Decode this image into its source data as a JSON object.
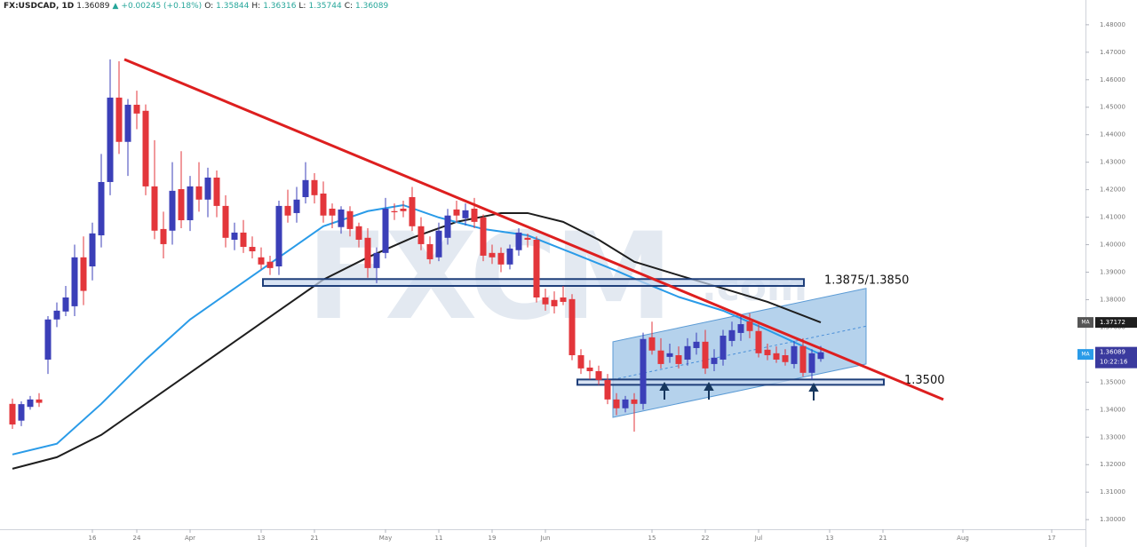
{
  "chart_data": {
    "type": "candlestick",
    "header": [
      "FX:USDCAD, 1D",
      "1.36089",
      "▲",
      "+0.00245 (+0.18%)",
      "O:",
      "1.35844",
      "H:",
      "1.36316",
      "L:",
      "1.35744",
      "C:",
      "1.36089"
    ],
    "watermark": "FXCM",
    "watermark_suffix": ".com",
    "up_color": "#3b3fb8",
    "down_color": "#e3363b",
    "xlim": [
      -1.4,
      120.8
    ],
    "ylim": [
      1.2965,
      1.489
    ],
    "xticks": [
      {
        "value": 9,
        "label": "16"
      },
      {
        "value": 14,
        "label": "24"
      },
      {
        "value": 20,
        "label": "Apr"
      },
      {
        "value": 28,
        "label": "13"
      },
      {
        "value": 34,
        "label": "21"
      },
      {
        "value": 42,
        "label": "May"
      },
      {
        "value": 48,
        "label": "11"
      },
      {
        "value": 54,
        "label": "19"
      },
      {
        "value": 60,
        "label": "Jun"
      },
      {
        "value": 72,
        "label": "15"
      },
      {
        "value": 78,
        "label": "22"
      },
      {
        "value": 84,
        "label": "Jul"
      },
      {
        "value": 92,
        "label": "13"
      },
      {
        "value": 98,
        "label": "21"
      },
      {
        "value": 107,
        "label": "Aug"
      },
      {
        "value": 117,
        "label": "17"
      }
    ],
    "yticks": [
      {
        "value": 1.48,
        "label": "1.48000"
      },
      {
        "value": 1.47,
        "label": "1.47000"
      },
      {
        "value": 1.46,
        "label": "1.46000"
      },
      {
        "value": 1.45,
        "label": "1.45000"
      },
      {
        "value": 1.44,
        "label": "1.44000"
      },
      {
        "value": 1.43,
        "label": "1.43000"
      },
      {
        "value": 1.42,
        "label": "1.42000"
      },
      {
        "value": 1.41,
        "label": "1.41000"
      },
      {
        "value": 1.4,
        "label": "1.40000"
      },
      {
        "value": 1.39,
        "label": "1.39000"
      },
      {
        "value": 1.38,
        "label": "1.38000"
      },
      {
        "value": 1.37,
        "label": "1.37000"
      },
      {
        "value": 1.35,
        "label": "1.35000"
      },
      {
        "value": 1.34,
        "label": "1.34000"
      },
      {
        "value": 1.33,
        "label": "1.33000"
      },
      {
        "value": 1.32,
        "label": "1.32000"
      },
      {
        "value": 1.31,
        "label": "1.31000"
      },
      {
        "value": 1.3,
        "label": "1.30000"
      }
    ],
    "x": [
      0,
      1,
      2,
      3,
      4,
      5,
      6,
      7,
      8,
      9,
      10,
      11,
      12,
      13,
      14,
      15,
      16,
      17,
      18,
      19,
      20,
      21,
      22,
      23,
      24,
      25,
      26,
      27,
      28,
      29,
      30,
      31,
      32,
      33,
      34,
      35,
      36,
      37,
      38,
      39,
      40,
      41,
      42,
      43,
      44,
      45,
      46,
      47,
      48,
      49,
      50,
      51,
      52,
      53,
      54,
      55,
      56,
      57,
      58,
      59,
      60,
      61,
      62,
      63,
      64,
      65,
      66,
      67,
      68,
      69,
      70,
      71,
      72,
      73,
      74,
      75,
      76,
      77,
      78,
      79,
      80,
      81,
      82,
      83,
      84,
      85,
      86,
      87,
      88,
      89,
      90,
      91
    ],
    "open": [
      1.3421,
      1.336,
      1.341,
      1.3437,
      1.3582,
      1.3728,
      1.3757,
      1.3776,
      1.3954,
      1.3921,
      1.4034,
      1.4228,
      1.4535,
      1.4374,
      1.4509,
      1.4487,
      1.4212,
      1.4057,
      1.4051,
      1.4202,
      1.4089,
      1.4212,
      1.4164,
      1.4244,
      1.4141,
      1.4018,
      1.4044,
      1.3992,
      1.3954,
      1.3938,
      1.3921,
      1.4141,
      1.4115,
      1.4173,
      1.4235,
      1.4186,
      1.4131,
      1.4064,
      1.4122,
      1.4067,
      1.4025,
      1.3915,
      1.397,
      1.4122,
      1.4131,
      1.4173,
      1.4067,
      1.4002,
      1.3954,
      1.4025,
      1.4128,
      1.4096,
      1.4131,
      1.4099,
      1.397,
      1.397,
      1.3928,
      1.398,
      1.4025,
      1.4018,
      1.3808,
      1.3799,
      1.3808,
      1.3802,
      1.3598,
      1.3553,
      1.354,
      1.3508,
      1.3437,
      1.3405,
      1.3437,
      1.3421,
      1.3663,
      1.3615,
      1.3592,
      1.3598,
      1.3582,
      1.3624,
      1.3647,
      1.3566,
      1.3582,
      1.365,
      1.3679,
      1.3721,
      1.3686,
      1.3618,
      1.3605,
      1.3598,
      1.3566,
      1.3631,
      1.3534,
      1.35844
    ],
    "high": [
      1.344,
      1.343,
      1.345,
      1.346,
      1.374,
      1.379,
      1.385,
      1.4,
      1.403,
      1.408,
      1.433,
      1.4674,
      1.4667,
      1.453,
      1.456,
      1.451,
      1.438,
      1.412,
      1.43,
      1.434,
      1.425,
      1.43,
      1.428,
      1.427,
      1.418,
      1.408,
      1.409,
      1.403,
      1.399,
      1.396,
      1.416,
      1.42,
      1.421,
      1.43,
      1.426,
      1.423,
      1.415,
      1.414,
      1.414,
      1.408,
      1.406,
      1.399,
      1.417,
      1.415,
      1.416,
      1.421,
      1.41,
      1.403,
      1.408,
      1.413,
      1.416,
      1.415,
      1.417,
      1.411,
      1.4,
      1.399,
      1.4,
      1.406,
      1.404,
      1.403,
      1.384,
      1.383,
      1.385,
      1.382,
      1.362,
      1.358,
      1.356,
      1.353,
      1.346,
      1.345,
      1.346,
      1.368,
      1.372,
      1.366,
      1.364,
      1.363,
      1.366,
      1.368,
      1.369,
      1.362,
      1.369,
      1.372,
      1.374,
      1.375,
      1.371,
      1.364,
      1.363,
      1.362,
      1.365,
      1.366,
      1.362,
      1.36316
    ],
    "low": [
      1.333,
      1.334,
      1.34,
      1.341,
      1.353,
      1.37,
      1.374,
      1.374,
      1.378,
      1.387,
      1.399,
      1.418,
      1.433,
      1.425,
      1.442,
      1.418,
      1.402,
      1.395,
      1.4,
      1.406,
      1.405,
      1.412,
      1.41,
      1.41,
      1.399,
      1.398,
      1.397,
      1.395,
      1.391,
      1.389,
      1.389,
      1.408,
      1.408,
      1.415,
      1.415,
      1.408,
      1.406,
      1.404,
      1.403,
      1.399,
      1.388,
      1.386,
      1.395,
      1.409,
      1.41,
      1.405,
      1.398,
      1.393,
      1.394,
      1.4,
      1.408,
      1.407,
      1.406,
      1.394,
      1.393,
      1.39,
      1.391,
      1.396,
      1.399,
      1.379,
      1.376,
      1.375,
      1.378,
      1.358,
      1.353,
      1.351,
      1.349,
      1.342,
      1.338,
      1.339,
      1.332,
      1.34,
      1.36,
      1.355,
      1.357,
      1.355,
      1.356,
      1.36,
      1.353,
      1.354,
      1.356,
      1.363,
      1.365,
      1.366,
      1.359,
      1.358,
      1.357,
      1.356,
      1.355,
      1.352,
      1.351,
      1.35744
    ],
    "close": [
      1.3346,
      1.342,
      1.3437,
      1.3425,
      1.3728,
      1.376,
      1.3808,
      1.3954,
      1.3832,
      1.4041,
      1.4228,
      1.4535,
      1.4374,
      1.4509,
      1.4477,
      1.4212,
      1.4051,
      1.4002,
      1.4196,
      1.4089,
      1.4212,
      1.4164,
      1.4244,
      1.4141,
      1.4025,
      1.4044,
      1.3992,
      1.3976,
      1.3928,
      1.3915,
      1.4141,
      1.4106,
      1.4164,
      1.4235,
      1.418,
      1.4106,
      1.4106,
      1.4128,
      1.4057,
      1.4018,
      1.3915,
      1.397,
      1.4131,
      1.4118,
      1.4122,
      1.4067,
      1.4002,
      1.3947,
      1.4051,
      1.4106,
      1.4106,
      1.4125,
      1.4083,
      1.396,
      1.3954,
      1.3928,
      1.3986,
      1.4044,
      1.4018,
      1.3808,
      1.3783,
      1.3776,
      1.3792,
      1.3598,
      1.355,
      1.354,
      1.3508,
      1.3437,
      1.3405,
      1.3437,
      1.3421,
      1.3657,
      1.3615,
      1.3566,
      1.3605,
      1.3566,
      1.3631,
      1.3647,
      1.355,
      1.3589,
      1.3669,
      1.3689,
      1.3711,
      1.3686,
      1.3605,
      1.3598,
      1.3582,
      1.3573,
      1.3631,
      1.3534,
      1.3605,
      1.36089
    ],
    "price_label": 1.36089,
    "countdown": "10:22:16",
    "price_color": "#3a3a9e",
    "series": [
      {
        "name": "MA",
        "color": "#1e1e1e",
        "last_value": 1.37172,
        "x": [
          0,
          5,
          10,
          15,
          20,
          25,
          30,
          35,
          40,
          45,
          50,
          55,
          58,
          62,
          66,
          70,
          75,
          80,
          85,
          91
        ],
        "values": [
          1.3185,
          1.3227,
          1.3308,
          1.3421,
          1.3534,
          1.3647,
          1.376,
          1.3873,
          1.3954,
          1.4025,
          1.4083,
          1.4115,
          1.4115,
          1.4083,
          1.4018,
          1.3938,
          1.3889,
          1.3841,
          1.3792,
          1.37172
        ]
      },
      {
        "name": "MA",
        "color": "#2a9be8",
        "last_value": 1.36009,
        "x": [
          0,
          5,
          10,
          15,
          20,
          25,
          30,
          35,
          40,
          44,
          48,
          53,
          58,
          63,
          68,
          71,
          75,
          80,
          85,
          91
        ],
        "values": [
          1.3237,
          1.3276,
          1.3421,
          1.3582,
          1.3728,
          1.3841,
          1.3954,
          1.4067,
          1.4122,
          1.4144,
          1.4099,
          1.4057,
          1.4034,
          1.397,
          1.3905,
          1.3863,
          1.381,
          1.376,
          1.369,
          1.36009
        ]
      }
    ],
    "trendline": {
      "x": [
        12.6,
        104.8
      ],
      "y": [
        1.4674,
        1.3437
      ],
      "color": "#dd1f1f"
    },
    "channel": {
      "x": [
        67.6,
        96.1
      ],
      "lower": [
        1.3372,
        1.3566
      ],
      "upper": [
        1.3647,
        1.3841
      ],
      "color": "#5b9bd5"
    },
    "zones": [
      {
        "label": "1.3875/1.3850",
        "x": [
          28.2,
          89.1
        ],
        "top": 1.3875,
        "bottom": 1.385
      },
      {
        "x": [
          63.6,
          98.1
        ],
        "level": {
          "value": 1.35,
          "label": "1.3500"
        }
      }
    ]
  }
}
